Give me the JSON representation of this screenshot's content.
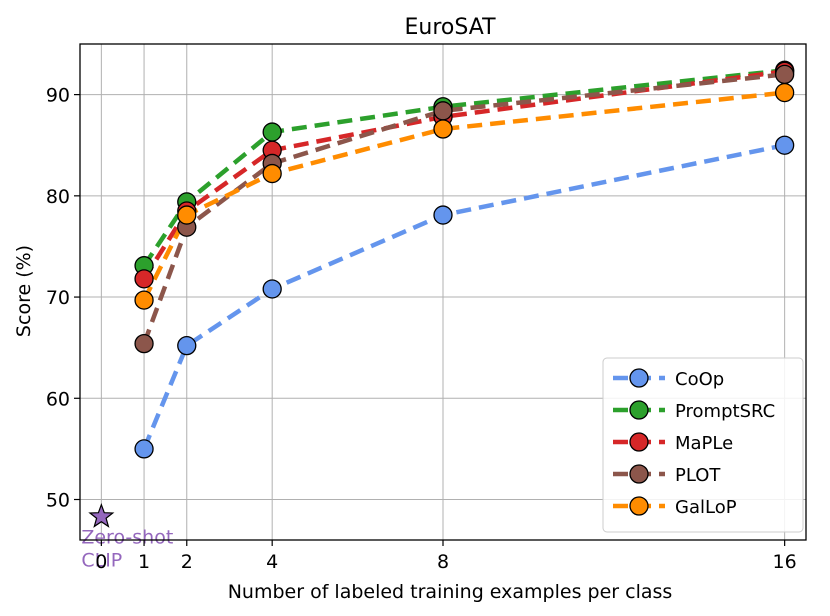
{
  "chart_data": {
    "type": "line",
    "title": "EuroSAT",
    "xlabel": "Number of labeled training examples per class",
    "ylabel": "Score (%)",
    "xlim": [
      -0.5,
      16.5
    ],
    "ylim": [
      46,
      95
    ],
    "xticks": [
      0,
      1,
      2,
      4,
      8,
      16
    ],
    "xtick_labels": [
      "0",
      "1",
      "2",
      "4",
      "8",
      "16"
    ],
    "yticks": [
      50,
      60,
      70,
      80,
      90
    ],
    "ytick_labels": [
      "50",
      "60",
      "70",
      "80",
      "90"
    ],
    "grid": true,
    "legend_position": "lower-right",
    "x": [
      1,
      2,
      4,
      8,
      16
    ],
    "series": [
      {
        "name": "CoOp",
        "color": "#6495ed",
        "values": [
          55.0,
          65.2,
          70.8,
          78.1,
          85.0
        ]
      },
      {
        "name": "PromptSRC",
        "color": "#2ca02c",
        "values": [
          73.1,
          79.4,
          86.3,
          88.8,
          92.4
        ]
      },
      {
        "name": "MaPLe",
        "color": "#d62728",
        "values": [
          71.8,
          78.5,
          84.5,
          87.8,
          92.3
        ]
      },
      {
        "name": "PLOT",
        "color": "#8c564b",
        "values": [
          65.4,
          76.9,
          83.2,
          88.4,
          92.0
        ]
      },
      {
        "name": "GalLoP",
        "color": "#ff8c00",
        "values": [
          69.7,
          78.1,
          82.2,
          86.6,
          90.2
        ]
      }
    ],
    "zero_shot": {
      "label_line1": "Zero-shot",
      "label_line2": "CLIP",
      "x": 0,
      "y": 48.3,
      "color": "#9467bd"
    }
  }
}
